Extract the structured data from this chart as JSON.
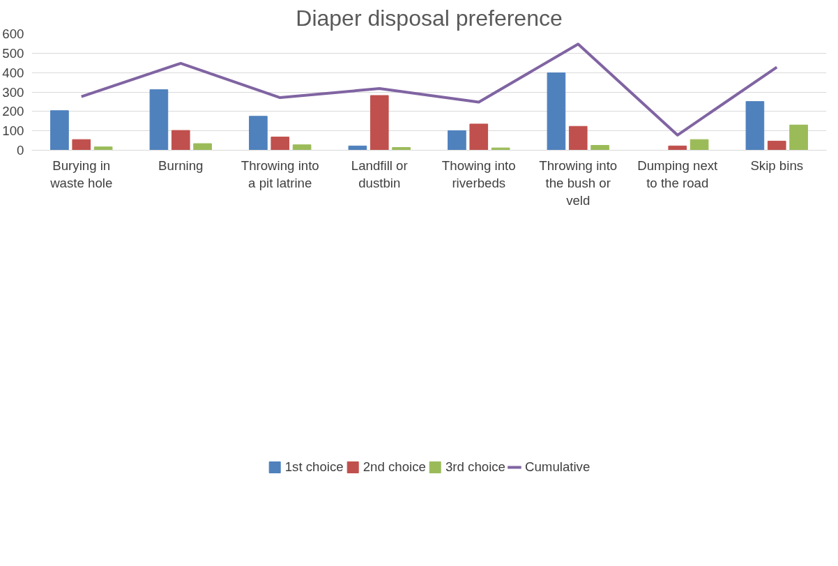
{
  "chart_data": {
    "type": "bar",
    "title": "Diaper disposal preference",
    "categories": [
      "Burying in waste hole",
      "Burning",
      "Throwing into a pit latrine",
      "Landfill or dustbin",
      "Thowing into riverbeds",
      "Throwing into the bush or veld",
      "Dumping next to the road",
      "Skip bins"
    ],
    "series": [
      {
        "name": "1st choice",
        "color": "#4f81bd",
        "values": [
          204,
          312,
          175,
          22,
          101,
          399,
          null,
          251
        ]
      },
      {
        "name": "2nd choice",
        "color": "#c0504d",
        "values": [
          55,
          102,
          68,
          282,
          135,
          123,
          22,
          47
        ]
      },
      {
        "name": "3rd choice",
        "color": "#9bbb59",
        "values": [
          17,
          34,
          28,
          14,
          12,
          25,
          55,
          130
        ]
      },
      {
        "name": "Cumulative",
        "type": "line",
        "color": "#8064a2",
        "values": [
          276,
          448,
          271,
          318,
          248,
          547,
          78,
          428
        ]
      }
    ],
    "ylim": [
      0,
      600
    ],
    "yticks": [
      0,
      100,
      200,
      300,
      400,
      500,
      600
    ],
    "grid": "y",
    "legend": "bottom",
    "marker": "none"
  }
}
